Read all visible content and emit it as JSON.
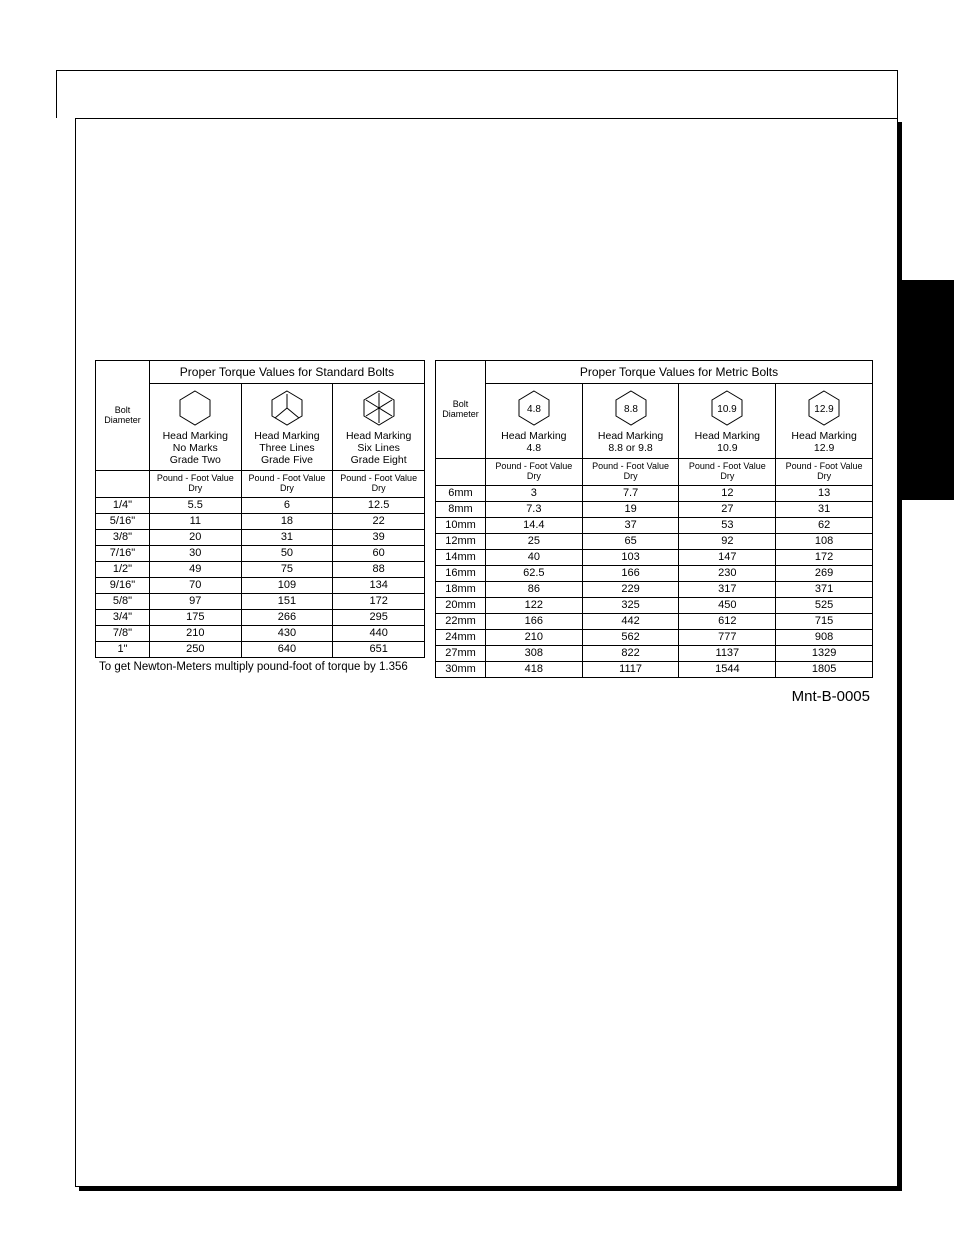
{
  "standard": {
    "title": "Proper Torque Values for Standard Bolts",
    "bolt_diameter_label": "Bolt\nDiameter",
    "headers": [
      {
        "lines": [
          "Head Marking",
          "No Marks",
          "Grade Two"
        ],
        "icon": "hex-plain"
      },
      {
        "lines": [
          "Head Marking",
          "Three Lines",
          "Grade Five"
        ],
        "icon": "hex-three"
      },
      {
        "lines": [
          "Head Marking",
          "Six Lines",
          "Grade Eight"
        ],
        "icon": "hex-six"
      }
    ],
    "pfv_label": "Pound - Foot Value\nDry",
    "rows": [
      {
        "dia": "1/4\"",
        "v": [
          "5.5",
          "6",
          "12.5"
        ]
      },
      {
        "dia": "5/16\"",
        "v": [
          "11",
          "18",
          "22"
        ]
      },
      {
        "dia": "3/8\"",
        "v": [
          "20",
          "31",
          "39"
        ]
      },
      {
        "dia": "7/16\"",
        "v": [
          "30",
          "50",
          "60"
        ]
      },
      {
        "dia": "1/2\"",
        "v": [
          "49",
          "75",
          "88"
        ]
      },
      {
        "dia": "9/16\"",
        "v": [
          "70",
          "109",
          "134"
        ]
      },
      {
        "dia": "5/8\"",
        "v": [
          "97",
          "151",
          "172"
        ]
      },
      {
        "dia": "3/4\"",
        "v": [
          "175",
          "266",
          "295"
        ]
      },
      {
        "dia": "7/8\"",
        "v": [
          "210",
          "430",
          "440"
        ]
      },
      {
        "dia": "1\"",
        "v": [
          "250",
          "640",
          "651"
        ]
      }
    ],
    "footnote": "To get Newton-Meters multiply pound-foot of torque by 1.356"
  },
  "metric": {
    "title": "Proper Torque Values for Metric Bolts",
    "bolt_diameter_label": "Bolt\nDiameter",
    "headers": [
      {
        "mark": "4.8",
        "lines": [
          "Head Marking",
          "4.8"
        ]
      },
      {
        "mark": "8.8",
        "lines": [
          "Head Marking",
          "8.8 or 9.8"
        ]
      },
      {
        "mark": "10.9",
        "lines": [
          "Head Marking",
          "10.9"
        ]
      },
      {
        "mark": "12.9",
        "lines": [
          "Head Marking",
          "12.9"
        ]
      }
    ],
    "pfv_label": "Pound - Foot Value\nDry",
    "rows": [
      {
        "dia": "6mm",
        "v": [
          "3",
          "7.7",
          "12",
          "13"
        ]
      },
      {
        "dia": "8mm",
        "v": [
          "7.3",
          "19",
          "27",
          "31"
        ]
      },
      {
        "dia": "10mm",
        "v": [
          "14.4",
          "37",
          "53",
          "62"
        ]
      },
      {
        "dia": "12mm",
        "v": [
          "25",
          "65",
          "92",
          "108"
        ]
      },
      {
        "dia": "14mm",
        "v": [
          "40",
          "103",
          "147",
          "172"
        ]
      },
      {
        "dia": "16mm",
        "v": [
          "62.5",
          "166",
          "230",
          "269"
        ]
      },
      {
        "dia": "18mm",
        "v": [
          "86",
          "229",
          "317",
          "371"
        ]
      },
      {
        "dia": "20mm",
        "v": [
          "122",
          "325",
          "450",
          "525"
        ]
      },
      {
        "dia": "22mm",
        "v": [
          "166",
          "442",
          "612",
          "715"
        ]
      },
      {
        "dia": "24mm",
        "v": [
          "210",
          "562",
          "777",
          "908"
        ]
      },
      {
        "dia": "27mm",
        "v": [
          "308",
          "822",
          "1137",
          "1329"
        ]
      },
      {
        "dia": "30mm",
        "v": [
          "418",
          "1117",
          "1544",
          "1805"
        ]
      }
    ]
  },
  "doc_id": "Mnt-B-0005",
  "style": {
    "page_bg": "#ffffff",
    "text_color": "#000000",
    "border_color": "#000000",
    "tab_color": "#000000",
    "font_family": "Arial, Helvetica, sans-serif",
    "title_fontsize_pt": 12,
    "body_fontsize_pt": 11,
    "small_fontsize_pt": 9
  }
}
